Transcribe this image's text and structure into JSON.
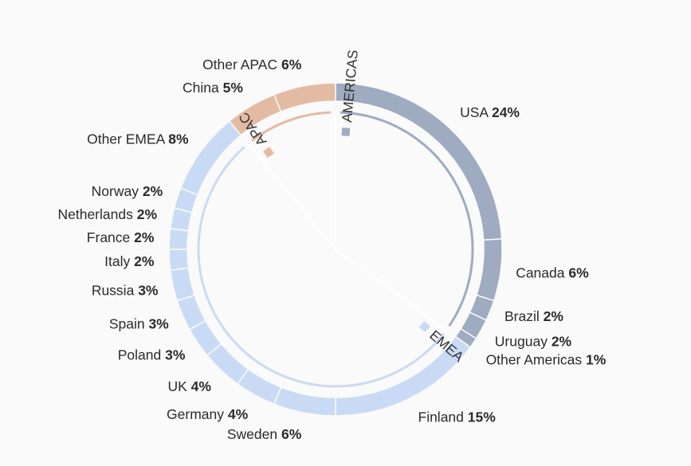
{
  "chart_data": {
    "type": "pie",
    "groups": [
      {
        "name": "AMERICAS",
        "color": "#9eabc1",
        "slices": [
          {
            "name": "USA",
            "value": 24,
            "label": "24%"
          },
          {
            "name": "Canada",
            "value": 6,
            "label": "6%"
          },
          {
            "name": "Brazil",
            "value": 2,
            "label": "2%"
          },
          {
            "name": "Uruguay",
            "value": 2,
            "label": "2%"
          },
          {
            "name": "Other Americas",
            "value": 1,
            "label": "1%"
          }
        ]
      },
      {
        "name": "EMEA",
        "color": "#c9dbf4",
        "slices": [
          {
            "name": "Finland",
            "value": 15,
            "label": "15%"
          },
          {
            "name": "Sweden",
            "value": 6,
            "label": "6%"
          },
          {
            "name": "Germany",
            "value": 4,
            "label": "4%"
          },
          {
            "name": "UK",
            "value": 4,
            "label": "4%"
          },
          {
            "name": "Poland",
            "value": 3,
            "label": "3%"
          },
          {
            "name": "Spain",
            "value": 3,
            "label": "3%"
          },
          {
            "name": "Russia",
            "value": 3,
            "label": "3%"
          },
          {
            "name": "Italy",
            "value": 2,
            "label": "2%"
          },
          {
            "name": "France",
            "value": 2,
            "label": "2%"
          },
          {
            "name": "Netherlands",
            "value": 2,
            "label": "2%"
          },
          {
            "name": "Norway",
            "value": 2,
            "label": "2%"
          },
          {
            "name": "Other EMEA",
            "value": 8,
            "label": "8%"
          }
        ]
      },
      {
        "name": "APAC",
        "color": "#e3bba3",
        "slices": [
          {
            "name": "China",
            "value": 5,
            "label": "5%"
          },
          {
            "name": "Other APAC",
            "value": 6,
            "label": "6%"
          }
        ]
      }
    ]
  }
}
